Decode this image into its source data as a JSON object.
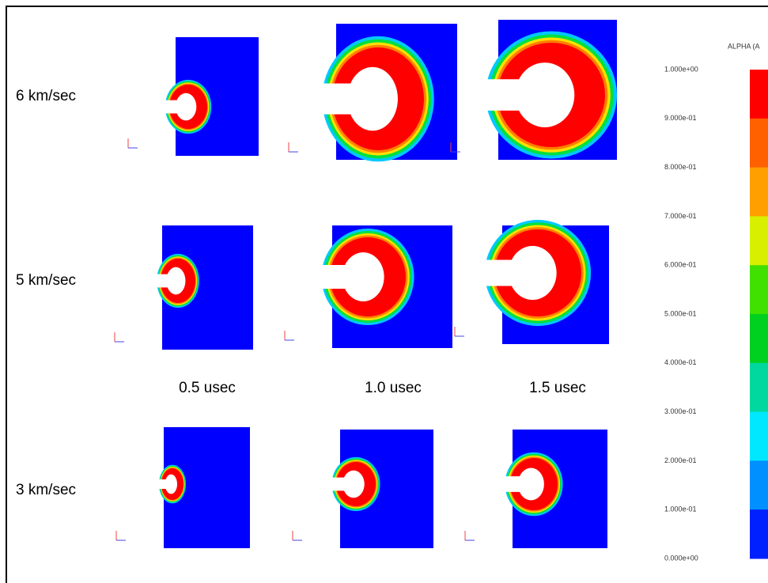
{
  "row_labels": [
    "6 km/sec",
    "5 km/sec",
    "3 km/sec"
  ],
  "column_labels": [
    "0.5 usec",
    "1.0 usec",
    "1.5 usec"
  ],
  "colorbar": {
    "title": "ALPHA (A",
    "tick_labels": [
      "1.000e+00",
      "9.000e-01",
      "8.000e-01",
      "7.000e-01",
      "6.000e-01",
      "5.000e-01",
      "4.000e-01",
      "3.000e-01",
      "2.000e-01",
      "1.000e-01",
      "0.000e+00"
    ]
  }
}
